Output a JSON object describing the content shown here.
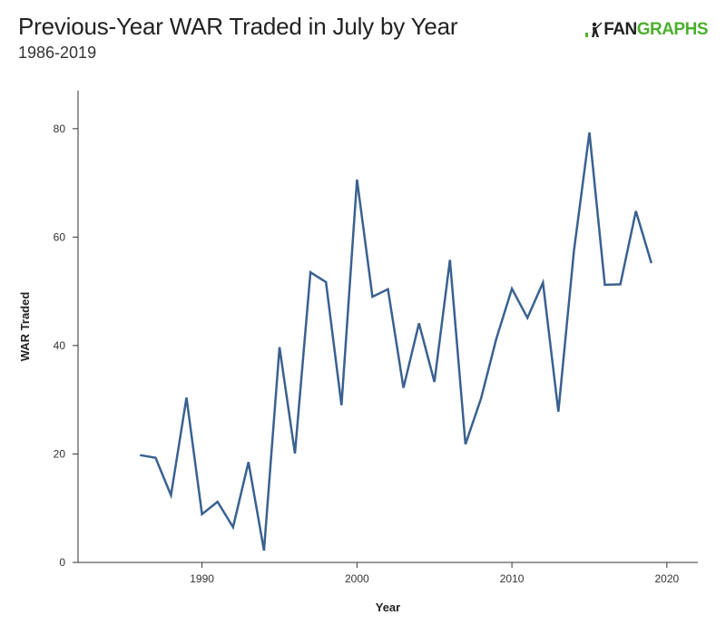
{
  "header": {
    "title": "Previous-Year WAR Traded in July by Year",
    "subtitle": "1986-2019"
  },
  "logo": {
    "icon": "batter-silhouette-icon",
    "text_fan": "FAN",
    "text_graphs": "GRAPHS",
    "color_fan": "#222222",
    "color_graphs": "#4caf2e"
  },
  "chart_data": {
    "type": "line",
    "xlabel": "Year",
    "ylabel": "WAR Traded",
    "xlim": [
      1982,
      2022
    ],
    "ylim": [
      0,
      87
    ],
    "xticks": [
      1990,
      2000,
      2010,
      2020
    ],
    "yticks": [
      0,
      20,
      40,
      60,
      80
    ],
    "grid": false,
    "line_color": "#3a6190",
    "x": [
      1986,
      1987,
      1988,
      1989,
      1990,
      1991,
      1992,
      1993,
      1994,
      1995,
      1996,
      1997,
      1998,
      1999,
      2000,
      2001,
      2002,
      2003,
      2004,
      2005,
      2006,
      2007,
      2008,
      2009,
      2010,
      2011,
      2012,
      2013,
      2014,
      2015,
      2016,
      2017,
      2018,
      2019
    ],
    "y": [
      19.8,
      19.3,
      12.4,
      30.4,
      8.9,
      11.2,
      6.5,
      18.5,
      2.2,
      39.7,
      20.1,
      53.5,
      51.7,
      29.0,
      70.6,
      49.0,
      50.4,
      32.2,
      44.1,
      33.3,
      55.8,
      21.8,
      30.2,
      41.3,
      50.5,
      45.1,
      51.6,
      27.8,
      57.4,
      79.3,
      51.2,
      51.3,
      64.8,
      55.2
    ]
  }
}
